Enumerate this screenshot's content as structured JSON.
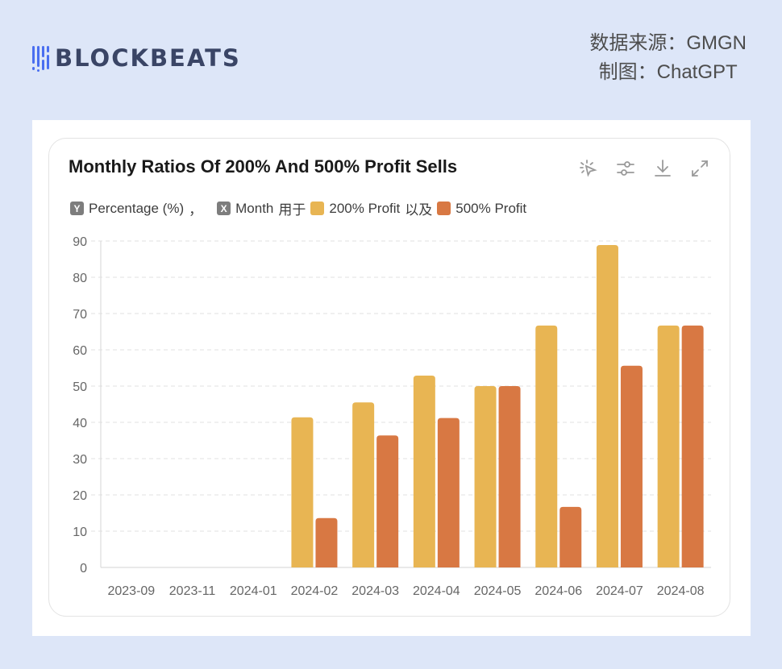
{
  "header": {
    "logo_text": "BLOCKBEATS",
    "source_line": "数据来源：GMGN",
    "credit_line": "制图：ChatGPT"
  },
  "toolbar": {
    "icons": [
      "magic-select-icon",
      "settings-sliders-icon",
      "download-icon",
      "fullscreen-icon"
    ]
  },
  "legend": {
    "y_badge": "Y",
    "y_label": "Percentage (%)",
    "separator": "，",
    "x_badge": "X",
    "x_label": "Month",
    "for_text": "用于",
    "series1_label": "200% Profit",
    "and_text": "以及",
    "series2_label": "500% Profit"
  },
  "colors": {
    "series1": "#e8b553",
    "series2": "#d87843",
    "background": "#dde6f8",
    "logo_accent": "#4a6ef0"
  },
  "chart_data": {
    "type": "bar",
    "title": "Monthly Ratios Of 200% And 500% Profit Sells",
    "xlabel": "Month",
    "ylabel": "Percentage (%)",
    "ylim": [
      0,
      90
    ],
    "yticks": [
      0,
      10,
      20,
      30,
      40,
      50,
      60,
      70,
      80,
      90
    ],
    "grid": true,
    "legend_position": "top-left",
    "categories": [
      "2023-09",
      "2023-11",
      "2024-01",
      "2024-02",
      "2024-03",
      "2024-04",
      "2024-05",
      "2024-06",
      "2024-07",
      "2024-08"
    ],
    "series": [
      {
        "name": "200% Profit",
        "values": [
          0,
          0,
          0,
          41.4,
          45.5,
          52.9,
          50.0,
          66.7,
          88.9,
          66.7
        ]
      },
      {
        "name": "500% Profit",
        "values": [
          0,
          0,
          0,
          13.6,
          36.4,
          41.2,
          50.0,
          16.7,
          55.6,
          66.7
        ]
      }
    ]
  }
}
